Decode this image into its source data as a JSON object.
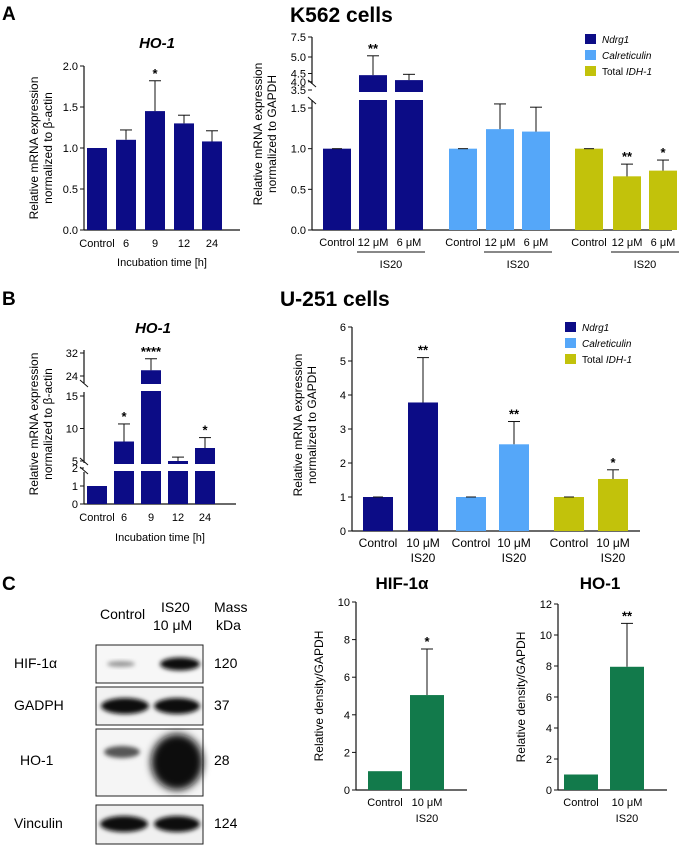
{
  "panels": {
    "A": "A",
    "B": "B",
    "C": "C",
    "k562_title": "K562 cells",
    "u251_title": "U-251 cells"
  },
  "legend": {
    "ndrg1": "Ndrg1",
    "calreticulin": "Calreticulin",
    "total": "Total ",
    "idh1": "IDH-1"
  },
  "colors": {
    "navy": "#0c0c86",
    "lightblue": "#55a7f9",
    "olive": "#c2c20b",
    "green": "#127a4b"
  },
  "chart_data": [
    {
      "id": "a-ho1",
      "type": "bar",
      "title": "HO-1",
      "categories": [
        "Control",
        "6",
        "9",
        "12",
        "24"
      ],
      "values": [
        1.0,
        1.1,
        1.45,
        1.3,
        1.08
      ],
      "errors": [
        0,
        0.12,
        0.37,
        0.1,
        0.13
      ],
      "significance": [
        "",
        "",
        "*",
        "",
        ""
      ],
      "xlabel": "Incubation time [h]",
      "ylabel": [
        "Relative mRNA expression",
        "normalized to β-actin"
      ],
      "ylim": [
        0,
        2.0
      ],
      "yticks": [
        "0.0",
        "0.5",
        "1.0",
        "1.5",
        "2.0"
      ]
    },
    {
      "id": "a-k562",
      "type": "bar",
      "title": "K562 cells",
      "groups": [
        {
          "name": "Ndrg1",
          "categories": [
            "Control",
            "12 μM",
            "6 μM"
          ],
          "values": [
            1.0,
            4.4,
            4.1
          ],
          "errors": [
            0,
            0.75,
            0.35
          ],
          "significance": [
            "",
            "**",
            ""
          ]
        },
        {
          "name": "Calreticulin",
          "categories": [
            "Control",
            "12 μM",
            "6 μM"
          ],
          "values": [
            1.0,
            1.24,
            1.21
          ],
          "errors": [
            0,
            0.31,
            0.3
          ],
          "significance": [
            "",
            "",
            ""
          ]
        },
        {
          "name": "Total IDH-1",
          "categories": [
            "Control",
            "12 μM",
            "6 μM"
          ],
          "values": [
            1.0,
            0.66,
            0.73
          ],
          "errors": [
            0,
            0.15,
            0.13
          ],
          "significance": [
            "",
            "**",
            "*"
          ]
        }
      ],
      "treatment_label": "IS20",
      "ylabel": [
        "Relative mRNA expression",
        "normalized to GAPDH"
      ],
      "axis_break": true,
      "ylim": [
        0,
        7.5
      ],
      "yticks_lower": [
        "0.0",
        "0.5",
        "1.0",
        "1.5"
      ],
      "yticks_upper": [
        "3.5",
        "4.0",
        "4.5",
        "5.0",
        "7.5"
      ]
    },
    {
      "id": "b-ho1",
      "type": "bar",
      "title": "HO-1",
      "categories": [
        "Control",
        "6",
        "9",
        "12",
        "24"
      ],
      "values": [
        1.0,
        8.0,
        26.0,
        5.0,
        7.0
      ],
      "errors": [
        0,
        2.7,
        4.0,
        0.6,
        1.6
      ],
      "significance": [
        "",
        "*",
        "****",
        "",
        "*"
      ],
      "xlabel": "Incubation time [h]",
      "ylabel": [
        "Relative mRNA expression",
        "normalized to β-actin"
      ],
      "axis_break": true,
      "yticks": [
        "0",
        "1",
        "2",
        "5",
        "10",
        "15",
        "24",
        "32"
      ]
    },
    {
      "id": "b-u251",
      "type": "bar",
      "title": "U-251 cells",
      "groups": [
        {
          "name": "Ndrg1",
          "categories": [
            "Control",
            "10 μM"
          ],
          "values": [
            1.0,
            3.78
          ],
          "errors": [
            0,
            1.32
          ],
          "significance": [
            "",
            "**"
          ]
        },
        {
          "name": "Calreticulin",
          "categories": [
            "Control",
            "10 μM"
          ],
          "values": [
            1.0,
            2.55
          ],
          "errors": [
            0,
            0.67
          ],
          "significance": [
            "",
            "**"
          ]
        },
        {
          "name": "Total IDH-1",
          "categories": [
            "Control",
            "10 μM"
          ],
          "values": [
            1.0,
            1.53
          ],
          "errors": [
            0,
            0.27
          ],
          "significance": [
            "",
            "*"
          ]
        }
      ],
      "treatment_label": "IS20",
      "ylabel": [
        "Relative mRNA expression",
        "normalized to GAPDH"
      ],
      "ylim": [
        0,
        6
      ],
      "yticks": [
        "0",
        "1",
        "2",
        "3",
        "4",
        "5",
        "6"
      ]
    },
    {
      "id": "c-hif",
      "type": "bar",
      "title": "HIF-1α",
      "categories": [
        "Control",
        "10 μM"
      ],
      "sublabel": "IS20",
      "values": [
        1.0,
        5.05
      ],
      "errors": [
        0,
        2.45
      ],
      "significance": [
        "",
        "*"
      ],
      "ylabel": "Relative density/GAPDH",
      "ylim": [
        0,
        10
      ],
      "yticks": [
        "0",
        "2",
        "4",
        "6",
        "8",
        "10"
      ]
    },
    {
      "id": "c-ho1",
      "type": "bar",
      "title": "HO-1",
      "categories": [
        "Control",
        "10 μM"
      ],
      "sublabel": "IS20",
      "values": [
        1.0,
        7.95
      ],
      "errors": [
        0,
        2.8
      ],
      "significance": [
        "",
        "**"
      ],
      "ylabel": "Relative density/GAPDH",
      "ylim": [
        0,
        12
      ],
      "yticks": [
        "0",
        "2",
        "4",
        "6",
        "8",
        "10",
        "12"
      ]
    }
  ],
  "blot": {
    "col_control": "Control",
    "col_treat_line1": "IS20",
    "col_treat_line2": "10 μM",
    "mass_line1": "Mass",
    "mass_line2": "kDa",
    "rows": [
      {
        "label": "HIF-1α",
        "mass": "120"
      },
      {
        "label": "GADPH",
        "mass": "37"
      },
      {
        "label": "HO-1",
        "mass": "28"
      },
      {
        "label": "Vinculin",
        "mass": "124"
      }
    ]
  }
}
